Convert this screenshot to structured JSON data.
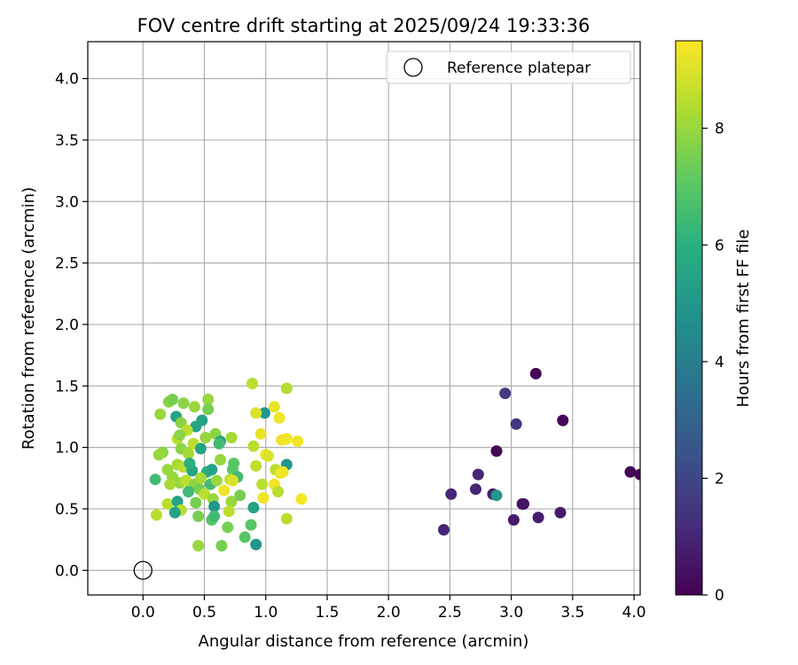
{
  "chart_data": {
    "type": "scatter",
    "title": "FOV centre drift starting at 2025/09/24 19:33:36",
    "xlabel": "Angular distance from reference (arcmin)",
    "ylabel": "Rotation from reference (arcmin)",
    "xlim": [
      -0.45,
      4.05
    ],
    "ylim": [
      -0.2,
      4.3
    ],
    "xticks": [
      "0.0",
      "0.5",
      "1.0",
      "1.5",
      "2.0",
      "2.5",
      "3.0",
      "3.5",
      "4.0"
    ],
    "yticks": [
      "0.0",
      "0.5",
      "1.0",
      "1.5",
      "2.0",
      "2.5",
      "3.0",
      "3.5",
      "4.0"
    ],
    "grid": true,
    "legend": {
      "position": "top-right",
      "label": "Reference platepar"
    },
    "reference_point": {
      "x": 0.0,
      "y": 0.0
    },
    "colorbar": {
      "label": "Hours from first FF file",
      "range": [
        0,
        9.5
      ],
      "ticks": [
        "0",
        "2",
        "4",
        "6",
        "8"
      ],
      "colormap": "viridis"
    },
    "points": [
      {
        "x": 3.2,
        "y": 1.6,
        "c": 0.1
      },
      {
        "x": 3.42,
        "y": 1.22,
        "c": 0.1
      },
      {
        "x": 2.88,
        "y": 0.97,
        "c": 0.1
      },
      {
        "x": 3.1,
        "y": 0.54,
        "c": 0.1
      },
      {
        "x": 3.97,
        "y": 0.8,
        "c": 0.1
      },
      {
        "x": 4.05,
        "y": 0.78,
        "c": 0.1
      },
      {
        "x": 2.95,
        "y": 1.44,
        "c": 1.6
      },
      {
        "x": 3.04,
        "y": 1.19,
        "c": 1.4
      },
      {
        "x": 2.73,
        "y": 0.78,
        "c": 1.0
      },
      {
        "x": 2.71,
        "y": 0.66,
        "c": 1.0
      },
      {
        "x": 2.51,
        "y": 0.62,
        "c": 1.0
      },
      {
        "x": 2.45,
        "y": 0.33,
        "c": 1.0
      },
      {
        "x": 2.85,
        "y": 0.62,
        "c": 0.8
      },
      {
        "x": 2.88,
        "y": 0.61,
        "c": 5.0
      },
      {
        "x": 3.09,
        "y": 0.54,
        "c": 0.5
      },
      {
        "x": 3.4,
        "y": 0.47,
        "c": 0.7
      },
      {
        "x": 3.02,
        "y": 0.41,
        "c": 0.7
      },
      {
        "x": 3.22,
        "y": 0.43,
        "c": 0.7
      },
      {
        "x": 0.89,
        "y": 1.52,
        "c": 8.5
      },
      {
        "x": 0.21,
        "y": 1.37,
        "c": 7.8
      },
      {
        "x": 0.24,
        "y": 1.39,
        "c": 7.5
      },
      {
        "x": 0.33,
        "y": 1.36,
        "c": 7.8
      },
      {
        "x": 0.53,
        "y": 1.39,
        "c": 8.0
      },
      {
        "x": 0.42,
        "y": 1.33,
        "c": 8.0
      },
      {
        "x": 1.17,
        "y": 1.48,
        "c": 8.4
      },
      {
        "x": 1.07,
        "y": 1.33,
        "c": 9.2
      },
      {
        "x": 1.11,
        "y": 1.24,
        "c": 9.3
      },
      {
        "x": 0.99,
        "y": 1.28,
        "c": 5.0
      },
      {
        "x": 0.92,
        "y": 1.28,
        "c": 9.0
      },
      {
        "x": 0.14,
        "y": 1.27,
        "c": 8.0
      },
      {
        "x": 0.27,
        "y": 1.25,
        "c": 5.5
      },
      {
        "x": 0.31,
        "y": 1.2,
        "c": 7.8
      },
      {
        "x": 0.48,
        "y": 1.22,
        "c": 5.5
      },
      {
        "x": 0.53,
        "y": 1.31,
        "c": 7.5
      },
      {
        "x": 0.43,
        "y": 1.17,
        "c": 5.5
      },
      {
        "x": 0.59,
        "y": 1.11,
        "c": 7.8
      },
      {
        "x": 0.36,
        "y": 1.14,
        "c": 8.5
      },
      {
        "x": 0.51,
        "y": 1.08,
        "c": 8.0
      },
      {
        "x": 0.63,
        "y": 1.05,
        "c": 5.5
      },
      {
        "x": 0.72,
        "y": 1.08,
        "c": 8.2
      },
      {
        "x": 0.96,
        "y": 1.11,
        "c": 9.2
      },
      {
        "x": 1.13,
        "y": 1.06,
        "c": 9.3
      },
      {
        "x": 1.17,
        "y": 1.07,
        "c": 9.3
      },
      {
        "x": 1.26,
        "y": 1.05,
        "c": 9.3
      },
      {
        "x": 0.28,
        "y": 1.07,
        "c": 8.5
      },
      {
        "x": 0.41,
        "y": 1.03,
        "c": 8.5
      },
      {
        "x": 0.31,
        "y": 0.99,
        "c": 7.8
      },
      {
        "x": 0.47,
        "y": 0.99,
        "c": 5.5
      },
      {
        "x": 0.16,
        "y": 0.96,
        "c": 7.8
      },
      {
        "x": 0.13,
        "y": 0.94,
        "c": 8.0
      },
      {
        "x": 0.37,
        "y": 0.95,
        "c": 8.2
      },
      {
        "x": 0.9,
        "y": 1.01,
        "c": 8.5
      },
      {
        "x": 1.0,
        "y": 0.94,
        "c": 9.3
      },
      {
        "x": 1.02,
        "y": 0.93,
        "c": 9.0
      },
      {
        "x": 1.17,
        "y": 0.86,
        "c": 5.0
      },
      {
        "x": 0.63,
        "y": 0.9,
        "c": 8.0
      },
      {
        "x": 0.74,
        "y": 0.87,
        "c": 7.0
      },
      {
        "x": 0.92,
        "y": 0.85,
        "c": 8.6
      },
      {
        "x": 1.08,
        "y": 0.82,
        "c": 8.5
      },
      {
        "x": 1.12,
        "y": 0.79,
        "c": 9.3
      },
      {
        "x": 1.14,
        "y": 0.8,
        "c": 9.3
      },
      {
        "x": 0.2,
        "y": 0.82,
        "c": 8.0
      },
      {
        "x": 0.28,
        "y": 0.86,
        "c": 8.2
      },
      {
        "x": 0.33,
        "y": 0.84,
        "c": 8.5
      },
      {
        "x": 0.4,
        "y": 0.81,
        "c": 5.5
      },
      {
        "x": 0.52,
        "y": 0.8,
        "c": 6.0
      },
      {
        "x": 0.56,
        "y": 0.82,
        "c": 5.5
      },
      {
        "x": 0.73,
        "y": 0.82,
        "c": 7.0
      },
      {
        "x": 0.77,
        "y": 0.76,
        "c": 6.5
      },
      {
        "x": 0.1,
        "y": 0.74,
        "c": 6.5
      },
      {
        "x": 0.24,
        "y": 0.76,
        "c": 8.0
      },
      {
        "x": 0.3,
        "y": 0.71,
        "c": 8.0
      },
      {
        "x": 0.35,
        "y": 0.73,
        "c": 8.5
      },
      {
        "x": 0.42,
        "y": 0.7,
        "c": 7.8
      },
      {
        "x": 0.46,
        "y": 0.66,
        "c": 7.5
      },
      {
        "x": 0.55,
        "y": 0.7,
        "c": 6.5
      },
      {
        "x": 0.6,
        "y": 0.73,
        "c": 8.0
      },
      {
        "x": 0.71,
        "y": 0.74,
        "c": 8.5
      },
      {
        "x": 0.73,
        "y": 0.73,
        "c": 9.0
      },
      {
        "x": 0.97,
        "y": 0.7,
        "c": 8.5
      },
      {
        "x": 1.07,
        "y": 0.7,
        "c": 9.3
      },
      {
        "x": 1.1,
        "y": 0.64,
        "c": 8.5
      },
      {
        "x": 0.2,
        "y": 0.54,
        "c": 8.5
      },
      {
        "x": 0.28,
        "y": 0.56,
        "c": 5.5
      },
      {
        "x": 0.31,
        "y": 0.49,
        "c": 8.5
      },
      {
        "x": 0.26,
        "y": 0.47,
        "c": 5.5
      },
      {
        "x": 0.43,
        "y": 0.55,
        "c": 7.5
      },
      {
        "x": 0.5,
        "y": 0.62,
        "c": 8.5
      },
      {
        "x": 0.57,
        "y": 0.58,
        "c": 8.0
      },
      {
        "x": 0.58,
        "y": 0.52,
        "c": 5.0
      },
      {
        "x": 0.66,
        "y": 0.65,
        "c": 9.3
      },
      {
        "x": 0.72,
        "y": 0.56,
        "c": 8.0
      },
      {
        "x": 0.79,
        "y": 0.61,
        "c": 7.5
      },
      {
        "x": 0.98,
        "y": 0.59,
        "c": 9.3
      },
      {
        "x": 0.9,
        "y": 0.51,
        "c": 5.5
      },
      {
        "x": 0.11,
        "y": 0.45,
        "c": 8.5
      },
      {
        "x": 0.45,
        "y": 0.44,
        "c": 7.5
      },
      {
        "x": 0.56,
        "y": 0.41,
        "c": 7.0
      },
      {
        "x": 0.58,
        "y": 0.44,
        "c": 6.5
      },
      {
        "x": 0.7,
        "y": 0.48,
        "c": 8.5
      },
      {
        "x": 0.69,
        "y": 0.35,
        "c": 7.5
      },
      {
        "x": 0.88,
        "y": 0.37,
        "c": 7.0
      },
      {
        "x": 0.83,
        "y": 0.27,
        "c": 7.0
      },
      {
        "x": 0.92,
        "y": 0.21,
        "c": 5.0
      },
      {
        "x": 0.45,
        "y": 0.2,
        "c": 8.0
      },
      {
        "x": 0.64,
        "y": 0.2,
        "c": 7.5
      },
      {
        "x": 1.17,
        "y": 0.42,
        "c": 8.5
      },
      {
        "x": 1.29,
        "y": 0.58,
        "c": 9.4
      },
      {
        "x": 0.22,
        "y": 0.7,
        "c": 8.2
      },
      {
        "x": 0.37,
        "y": 0.64,
        "c": 6.5
      },
      {
        "x": 0.47,
        "y": 0.75,
        "c": 8.2
      },
      {
        "x": 0.62,
        "y": 1.03,
        "c": 6.5
      },
      {
        "x": 0.38,
        "y": 0.87,
        "c": 6.0
      },
      {
        "x": 0.3,
        "y": 1.1,
        "c": 7.8
      }
    ]
  }
}
